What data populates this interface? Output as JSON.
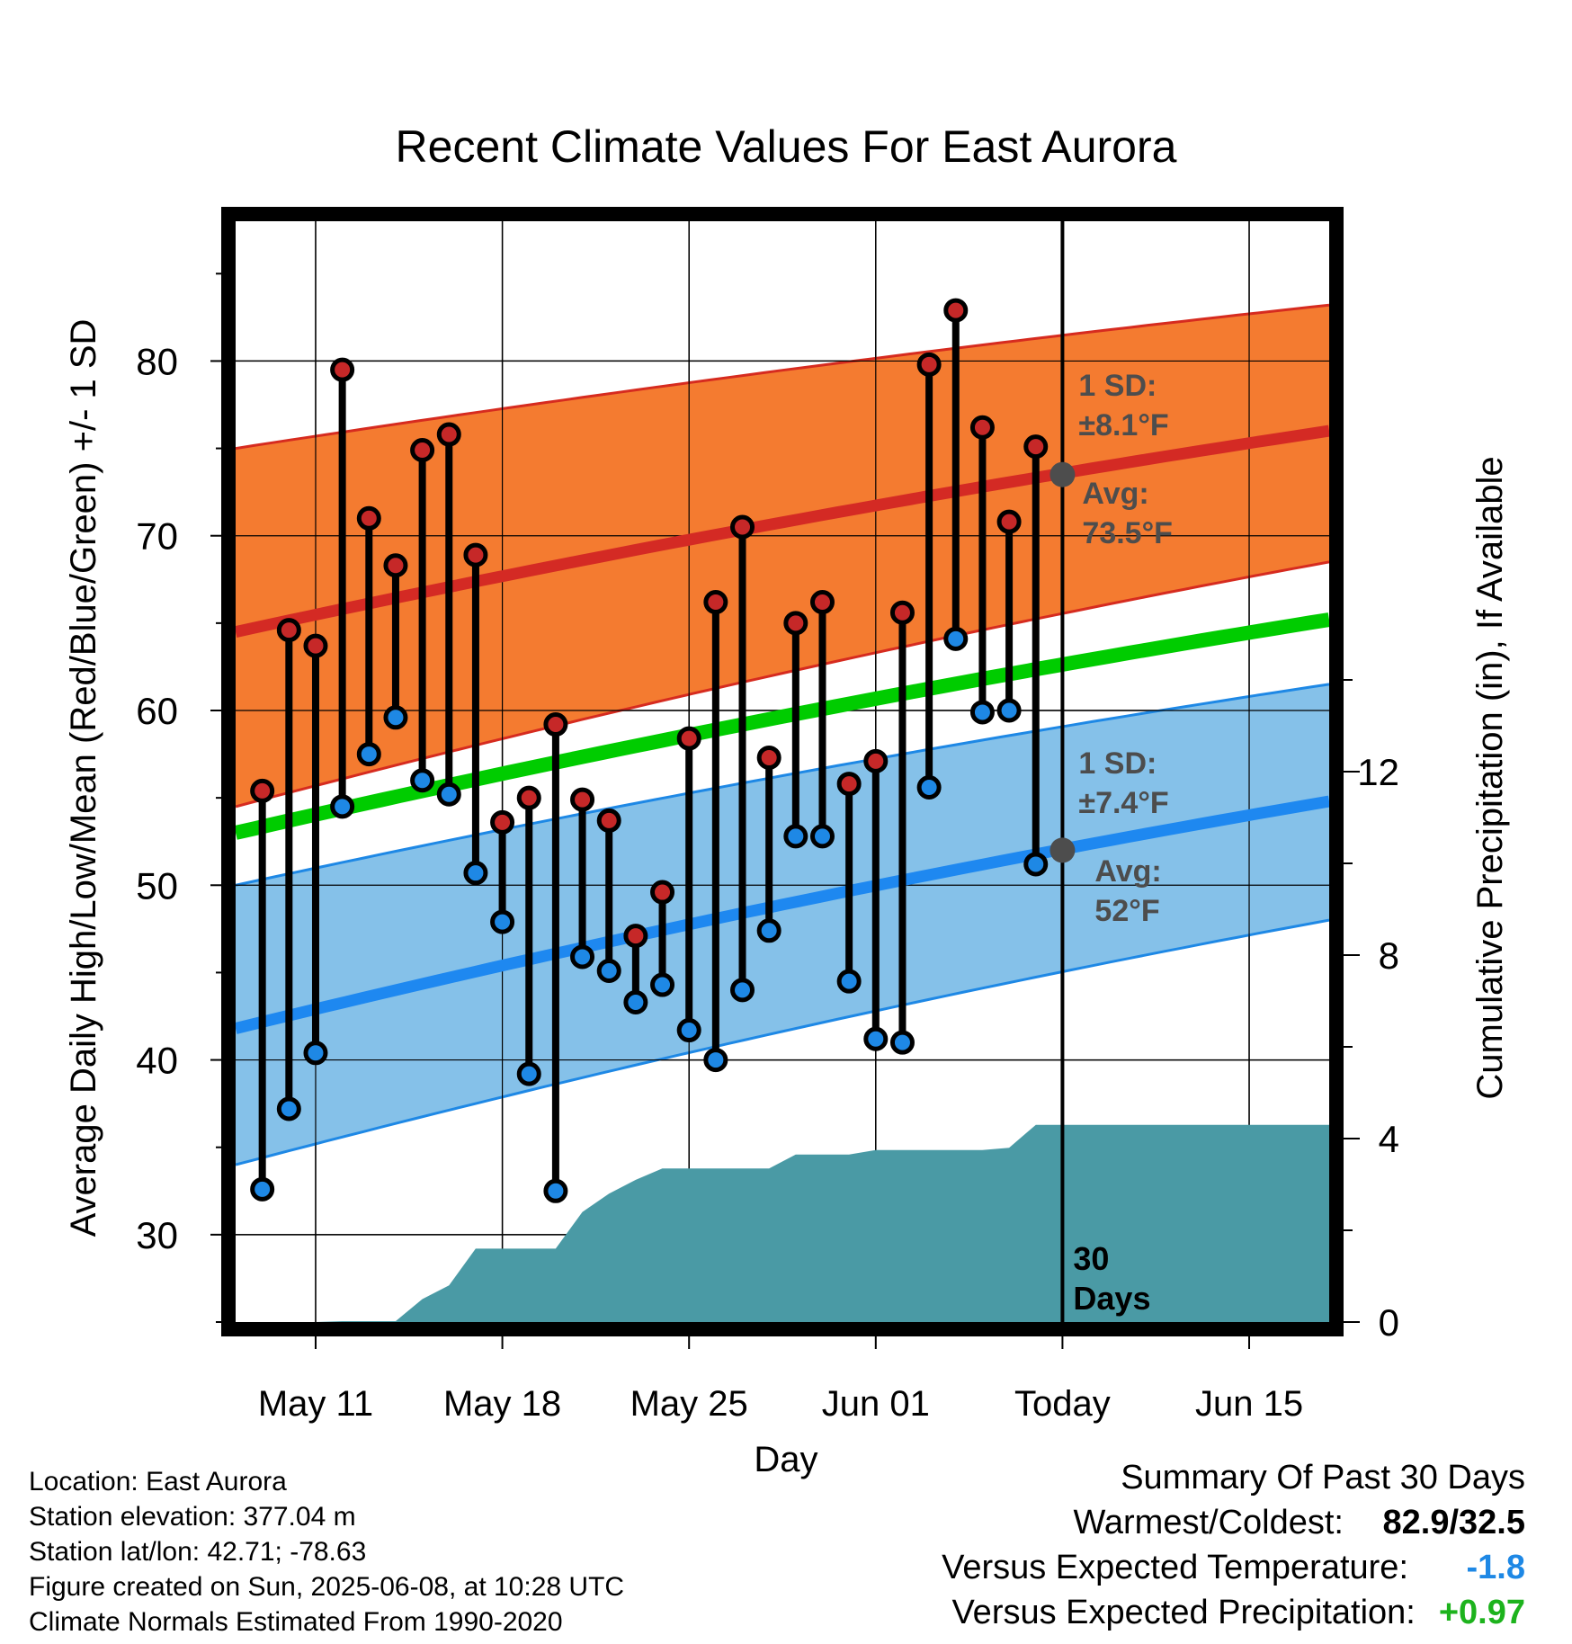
{
  "chart_data": {
    "type": "line",
    "title": "Recent Climate Values For East Aurora",
    "xlabel": "Day",
    "ylabel": "Average Daily High/Low/Mean (Red/Blue/Green) +/- 1 SD",
    "y2label": "Cumulative Precipitation (in), If Available",
    "ylim": [
      25,
      88
    ],
    "y2lim": [
      0,
      24
    ],
    "yticks": [
      30,
      40,
      50,
      60,
      70,
      80
    ],
    "y2ticks": [
      0,
      4,
      8,
      12
    ],
    "xlim": [
      "2025-05-08",
      "2025-06-18"
    ],
    "xticks": [
      {
        "date": "2025-05-11",
        "label": "May 11"
      },
      {
        "date": "2025-05-18",
        "label": "May 18"
      },
      {
        "date": "2025-05-25",
        "label": "May 25"
      },
      {
        "date": "2025-06-01",
        "label": "Jun 01"
      },
      {
        "date": "2025-06-08",
        "label": "Today"
      },
      {
        "date": "2025-06-15",
        "label": "Jun 15"
      }
    ],
    "grid": true,
    "today": "2025-06-08",
    "period_label": "30 Days",
    "normals": {
      "high_avg": {
        "start": 64.5,
        "end": 76.0
      },
      "high_band": {
        "lower_start": 54.5,
        "lower_end": 68.5,
        "upper_start": 75.0,
        "upper_end": 83.2
      },
      "mean_avg": {
        "start": 53.0,
        "end": 65.2
      },
      "low_avg": {
        "start": 41.8,
        "end": 54.8
      },
      "low_band": {
        "lower_start": 34.0,
        "lower_end": 48.0,
        "upper_start": 50.0,
        "upper_end": 61.5
      }
    },
    "high_annotation": {
      "line1": "1 SD:",
      "line2": "±8.1°F",
      "line3": "Avg:",
      "line4": "73.5°F",
      "value": 73.5
    },
    "low_annotation": {
      "line1": "1 SD:",
      "line2": "±7.4°F",
      "line3": "Avg:",
      "line4": "52°F",
      "value": 52
    },
    "daily": {
      "dates": [
        "2025-05-09",
        "2025-05-10",
        "2025-05-11",
        "2025-05-12",
        "2025-05-13",
        "2025-05-14",
        "2025-05-15",
        "2025-05-16",
        "2025-05-17",
        "2025-05-18",
        "2025-05-19",
        "2025-05-20",
        "2025-05-21",
        "2025-05-22",
        "2025-05-23",
        "2025-05-24",
        "2025-05-25",
        "2025-05-26",
        "2025-05-27",
        "2025-05-28",
        "2025-05-29",
        "2025-05-30",
        "2025-05-31",
        "2025-06-01",
        "2025-06-02",
        "2025-06-03",
        "2025-06-04",
        "2025-06-05",
        "2025-06-06",
        "2025-06-07"
      ],
      "highs": [
        55.4,
        64.6,
        63.7,
        79.5,
        71.0,
        68.3,
        74.9,
        75.8,
        68.9,
        53.6,
        55.0,
        59.2,
        54.9,
        53.7,
        47.1,
        49.6,
        58.4,
        66.2,
        70.5,
        57.3,
        65.0,
        66.2,
        55.8,
        57.1,
        65.6,
        79.8,
        82.9,
        76.2,
        70.8,
        75.1
      ],
      "lows": [
        32.6,
        37.2,
        40.4,
        54.5,
        57.5,
        59.6,
        56.0,
        55.2,
        50.7,
        47.9,
        39.2,
        32.5,
        45.9,
        45.1,
        43.3,
        44.3,
        41.7,
        40.0,
        44.0,
        47.4,
        52.8,
        52.8,
        44.5,
        41.2,
        41.0,
        55.6,
        64.1,
        59.9,
        60.0,
        51.2
      ]
    },
    "precip_cumulative": [
      {
        "date": "2025-05-11",
        "value": 0
      },
      {
        "date": "2025-05-12",
        "value": 0.02
      },
      {
        "date": "2025-05-14",
        "value": 0.02
      },
      {
        "date": "2025-05-15",
        "value": 0.5
      },
      {
        "date": "2025-05-16",
        "value": 0.8
      },
      {
        "date": "2025-05-17",
        "value": 1.6
      },
      {
        "date": "2025-05-20",
        "value": 1.6
      },
      {
        "date": "2025-05-21",
        "value": 2.4
      },
      {
        "date": "2025-05-22",
        "value": 2.8
      },
      {
        "date": "2025-05-23",
        "value": 3.1
      },
      {
        "date": "2025-05-24",
        "value": 3.35
      },
      {
        "date": "2025-05-28",
        "value": 3.35
      },
      {
        "date": "2025-05-29",
        "value": 3.65
      },
      {
        "date": "2025-05-31",
        "value": 3.65
      },
      {
        "date": "2025-06-01",
        "value": 3.75
      },
      {
        "date": "2025-06-05",
        "value": 3.75
      },
      {
        "date": "2025-06-06",
        "value": 3.8
      },
      {
        "date": "2025-06-07",
        "value": 4.3
      },
      {
        "date": "2025-06-18",
        "value": 4.3
      }
    ]
  },
  "colors": {
    "high_band": "#f47b30",
    "high_band_edge": "#d62b1f",
    "high_avg": "#d42a24",
    "mean_avg": "#00cc00",
    "low_band": "#85c1e9",
    "low_band_edge": "#1e88e5",
    "low_avg": "#1e88f0",
    "precip": "#4a9aa5",
    "high_marker": "#c62828",
    "low_marker": "#1e88e5",
    "annotation": "#4d4d4d",
    "avg_dot": "#4d4d4d",
    "cold_value": "#1e88e5",
    "wet_value": "#1db31d"
  },
  "footer": {
    "location": "Location: East Aurora",
    "elevation": "Station elevation: 377.04 m",
    "latlon": "Station lat/lon: 42.71; -78.63",
    "created": "Figure created on Sun, 2025-06-08, at 10:28 UTC",
    "normals": "Climate Normals Estimated From 1990-2020"
  },
  "summary": {
    "title": "Summary Of Past 30 Days",
    "warmest_label": "Warmest/Coldest:",
    "warmest_value": "82.9/32.5",
    "temp_label": "Versus Expected Temperature:",
    "temp_value": "-1.8",
    "precip_label": "Versus Expected Precipitation:",
    "precip_value": "+0.97"
  }
}
